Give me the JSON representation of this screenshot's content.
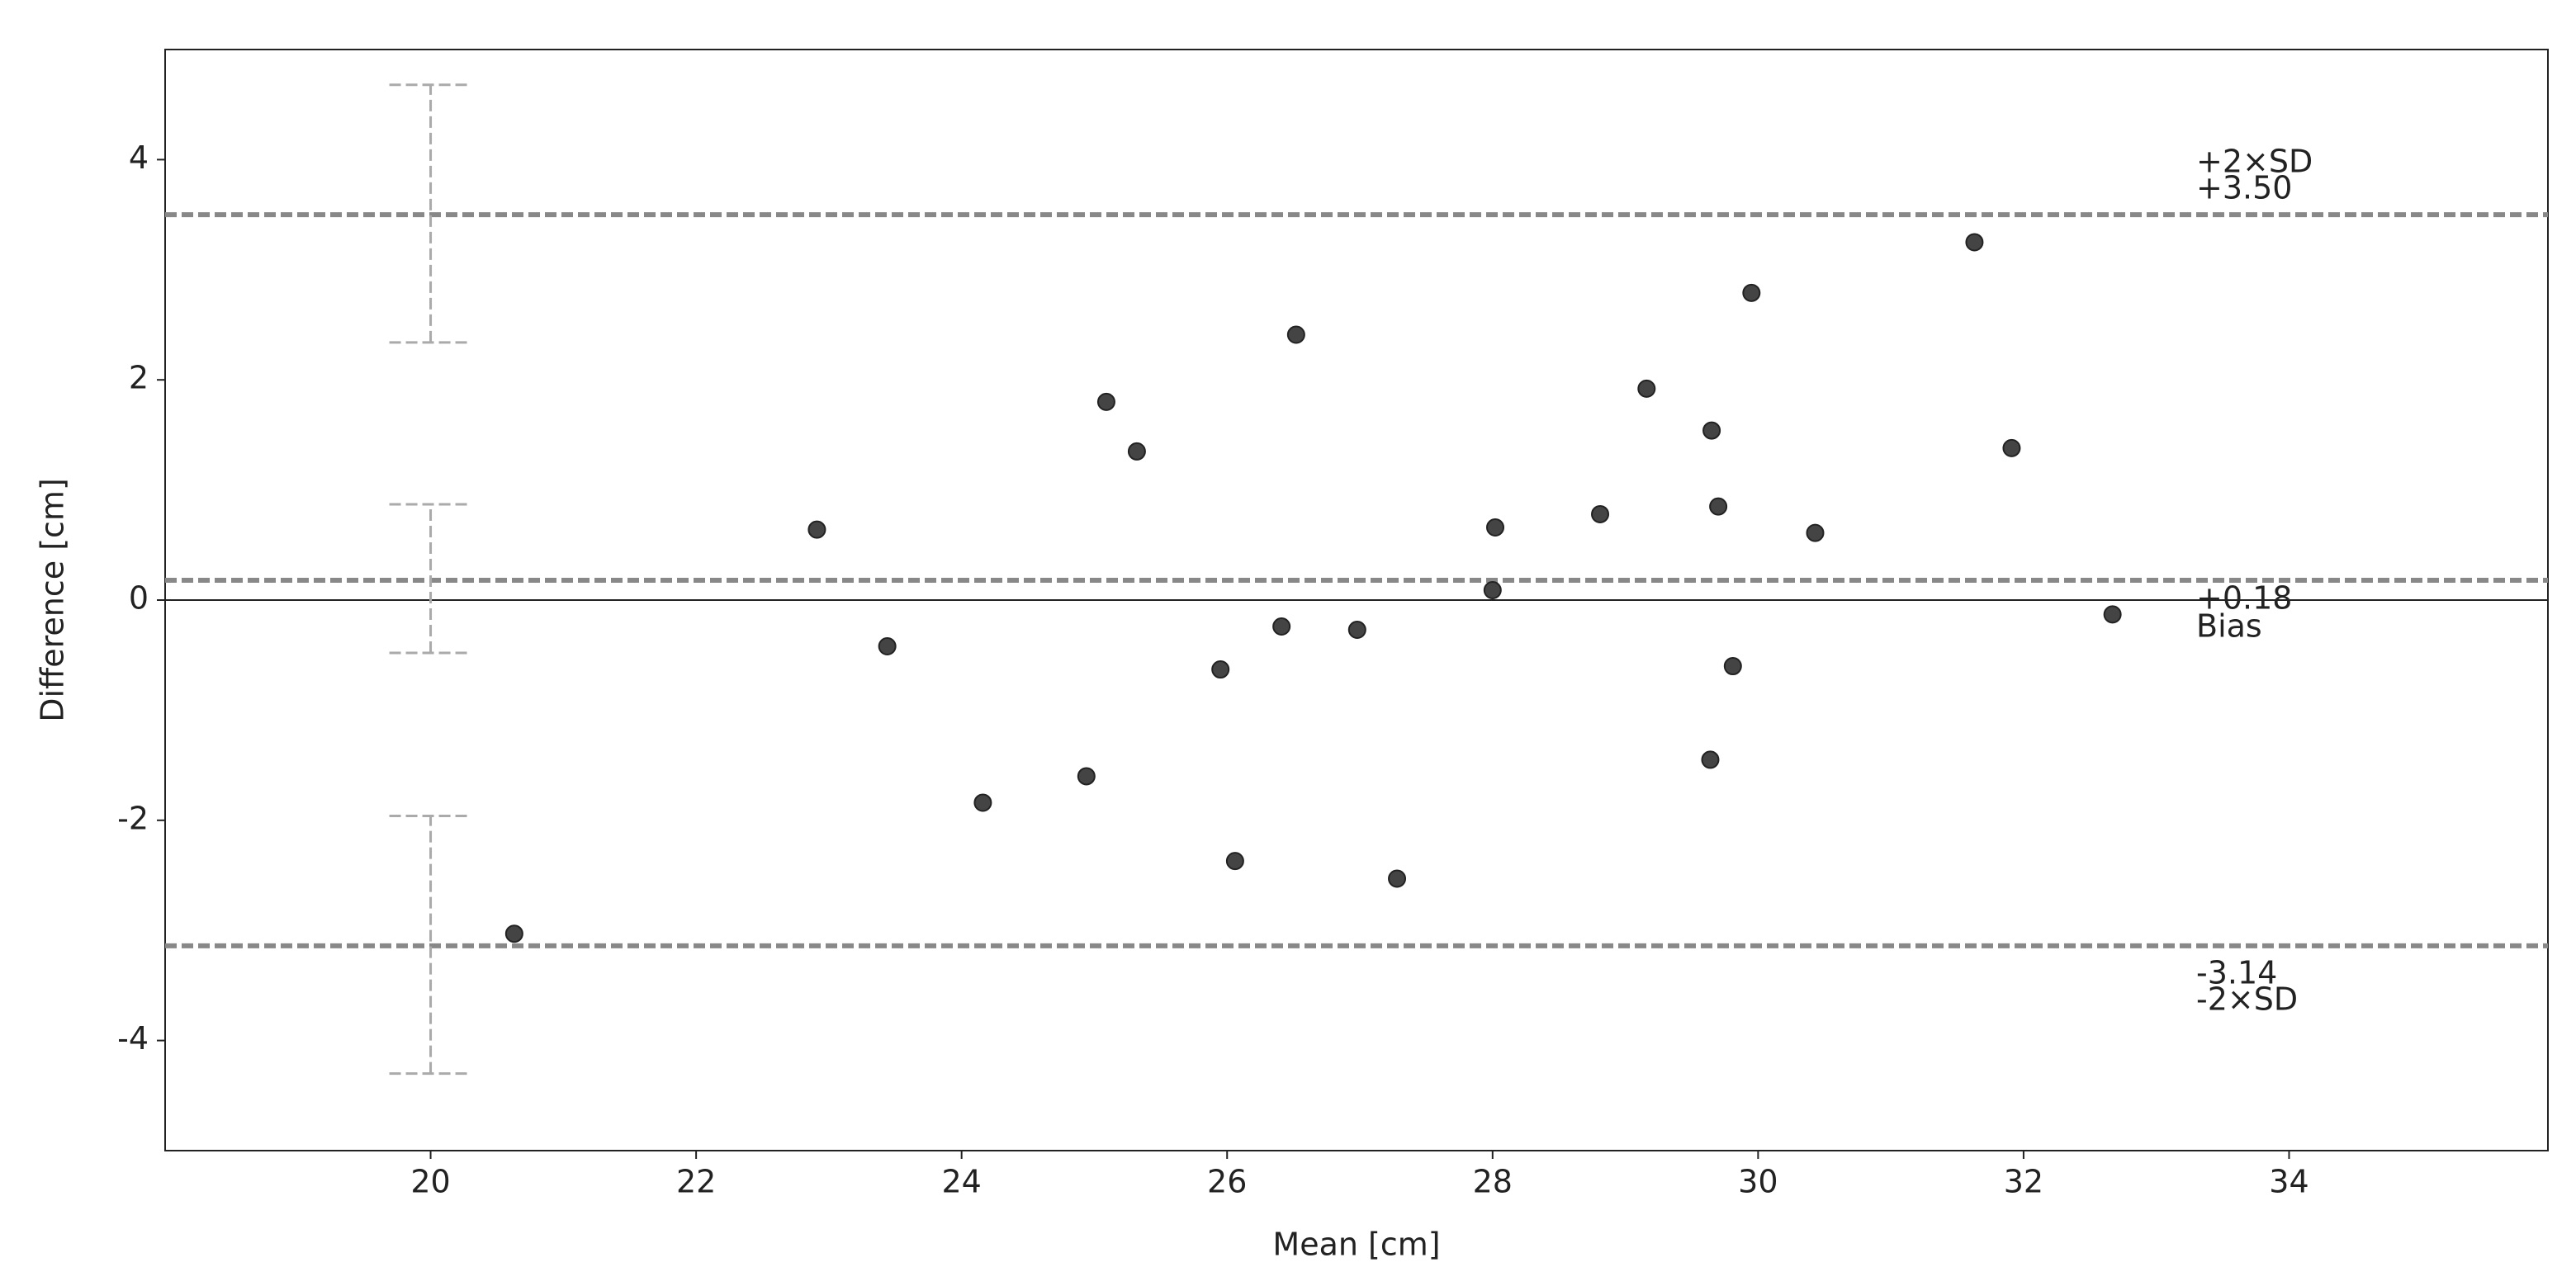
{
  "chart_data": {
    "type": "scatter",
    "xlabel": "Mean [cm]",
    "ylabel": "Difference [cm]",
    "x": [
      20.63,
      22.91,
      23.44,
      24.16,
      24.94,
      25.09,
      25.32,
      25.95,
      26.06,
      26.41,
      26.52,
      26.98,
      27.28,
      28.0,
      28.02,
      28.81,
      29.16,
      29.64,
      29.65,
      29.7,
      29.81,
      29.95,
      30.43,
      31.63,
      31.91,
      32.67
    ],
    "values": [
      -3.03,
      0.64,
      -0.42,
      -1.84,
      -1.6,
      1.8,
      1.35,
      -0.63,
      -2.37,
      -0.24,
      2.41,
      -0.27,
      -2.53,
      0.09,
      0.66,
      0.78,
      1.92,
      -1.45,
      1.54,
      0.85,
      -0.6,
      2.79,
      0.61,
      3.25,
      1.38,
      -0.13
    ],
    "color": "#444444",
    "lines": [
      {
        "name": "+2×SD",
        "value": 3.5,
        "value_label": "+3.50",
        "ci": [
          2.34,
          4.68
        ]
      },
      {
        "name": "Bias",
        "value": 0.18,
        "value_label": "+0.18",
        "ci": [
          -0.48,
          0.87
        ]
      },
      {
        "name": "-2×SD",
        "value": -3.14,
        "value_label": "-3.14",
        "ci": [
          -4.3,
          -1.96
        ]
      }
    ],
    "ci_x": 20,
    "line_color": "#888888",
    "ci_color": "#aaaaaa",
    "xlim": [
      18.0,
      35.95
    ],
    "ylim": [
      -5,
      5
    ],
    "xticks": [
      20,
      22,
      24,
      26,
      28,
      30,
      32,
      34
    ],
    "yticks": [
      -4,
      -2,
      0,
      2,
      4
    ]
  }
}
